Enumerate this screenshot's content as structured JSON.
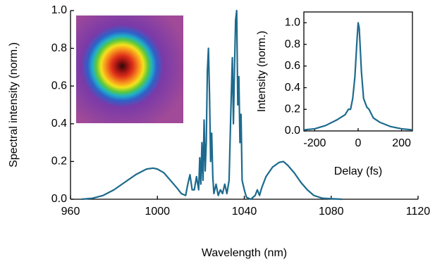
{
  "chart_data": [
    {
      "type": "line",
      "x_label": "Wavelength (nm)",
      "y_label": "Spectral intensity (norm.)",
      "xlim": [
        960,
        1120
      ],
      "ylim": [
        0,
        1.0
      ],
      "xticks": [
        960,
        1000,
        1040,
        1080,
        1120
      ],
      "yticks": [
        {
          "value": 0,
          "label": "0.0"
        },
        0.2,
        0.4,
        0.6,
        0.8,
        {
          "value": 1,
          "label": "1.0"
        }
      ],
      "color": "#1d6a8e",
      "x": [
        965,
        970,
        975,
        980,
        985,
        990,
        995,
        998,
        1000,
        1003,
        1006,
        1009,
        1011,
        1013,
        1014,
        1015,
        1016,
        1017,
        1018,
        1019,
        1019.5,
        1020,
        1020.5,
        1021,
        1021.5,
        1022,
        1022.5,
        1023,
        1023.5,
        1024,
        1024.5,
        1025,
        1025.5,
        1026,
        1027,
        1028,
        1029,
        1030,
        1031,
        1032,
        1033,
        1034,
        1034.5,
        1035,
        1035.5,
        1036,
        1036.5,
        1037,
        1037.5,
        1038,
        1038.5,
        1039,
        1040,
        1041,
        1043,
        1045,
        1046,
        1047,
        1048,
        1050,
        1053,
        1056,
        1058,
        1060,
        1063,
        1066,
        1069,
        1072,
        1076,
        1085
      ],
      "values": [
        0.0,
        0.005,
        0.02,
        0.05,
        0.09,
        0.13,
        0.16,
        0.165,
        0.16,
        0.14,
        0.1,
        0.06,
        0.03,
        0.02,
        0.08,
        0.13,
        0.05,
        0.05,
        0.12,
        0.05,
        0.22,
        0.08,
        0.3,
        0.1,
        0.42,
        0.15,
        0.3,
        0.68,
        0.8,
        0.55,
        0.2,
        0.35,
        0.12,
        0.03,
        0.08,
        0.02,
        0.05,
        0.03,
        0.08,
        0.03,
        0.1,
        0.55,
        0.75,
        0.4,
        0.7,
        0.95,
        1.0,
        0.5,
        0.65,
        0.3,
        0.45,
        0.1,
        0.05,
        0.01,
        0.0,
        0.02,
        0.05,
        0.02,
        0.06,
        0.12,
        0.17,
        0.195,
        0.2,
        0.18,
        0.14,
        0.09,
        0.05,
        0.02,
        0.005,
        0.0
      ]
    },
    {
      "type": "line",
      "x_label": "Delay (fs)",
      "y_label": "Intensity (norm.)",
      "xlim": [
        -250,
        250
      ],
      "ylim": [
        0,
        1.1
      ],
      "xticks": [
        -200,
        0,
        200
      ],
      "yticks": [
        {
          "value": 0,
          "label": "0.0"
        },
        0.2,
        0.4,
        0.6,
        0.8,
        {
          "value": 1,
          "label": "1.0"
        }
      ],
      "color": "#1d6a8e",
      "x": [
        -250,
        -200,
        -150,
        -100,
        -60,
        -45,
        -35,
        -25,
        -15,
        -5,
        0,
        5,
        15,
        25,
        40,
        50,
        70,
        100,
        150,
        200,
        250
      ],
      "values": [
        0.01,
        0.02,
        0.05,
        0.1,
        0.15,
        0.2,
        0.2,
        0.3,
        0.5,
        0.85,
        1.0,
        0.95,
        0.55,
        0.3,
        0.22,
        0.2,
        0.12,
        0.08,
        0.04,
        0.02,
        0.01
      ]
    }
  ]
}
